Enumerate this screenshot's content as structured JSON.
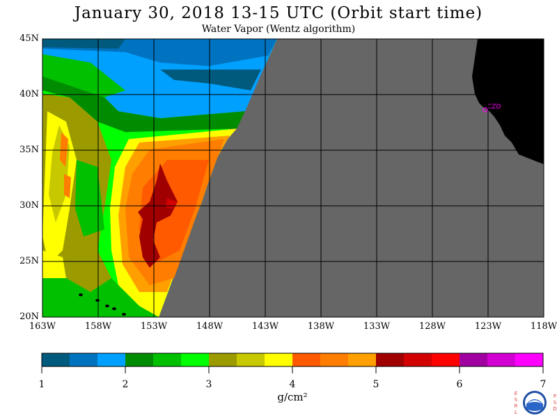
{
  "title": "January 30, 2018  13-15 UTC  (Orbit start time)",
  "subtitle": "Water Vapor (Wentz algorithm)",
  "map": {
    "lat_labels": [
      "45N",
      "40N",
      "35N",
      "30N",
      "25N",
      "20N"
    ],
    "lon_labels": [
      "163W",
      "158W",
      "153W",
      "148W",
      "143W",
      "138W",
      "133W",
      "128W",
      "123W",
      "118W"
    ],
    "lat_range": [
      20,
      45
    ],
    "lon_range": [
      -163,
      -118
    ],
    "no_data_color": "#666666",
    "land_color": "#000000",
    "station": {
      "label": "CZD",
      "color": "#ff00ff"
    }
  },
  "colorbar": {
    "colors": [
      "#005a7d",
      "#0073c0",
      "#00a0ff",
      "#008c00",
      "#00c000",
      "#00ff00",
      "#9b9b00",
      "#c8c800",
      "#ffff00",
      "#ff5a00",
      "#ff7d00",
      "#ffa000",
      "#a00000",
      "#d20000",
      "#ff0000",
      "#a000a0",
      "#d200d2",
      "#ff00ff"
    ],
    "tick_labels": [
      "1",
      "2",
      "3",
      "4",
      "5",
      "6",
      "7"
    ],
    "units": "g/cm²"
  },
  "logo": {
    "esrl": "ESRL",
    "psd": "PSD",
    "name": "NOAA"
  }
}
